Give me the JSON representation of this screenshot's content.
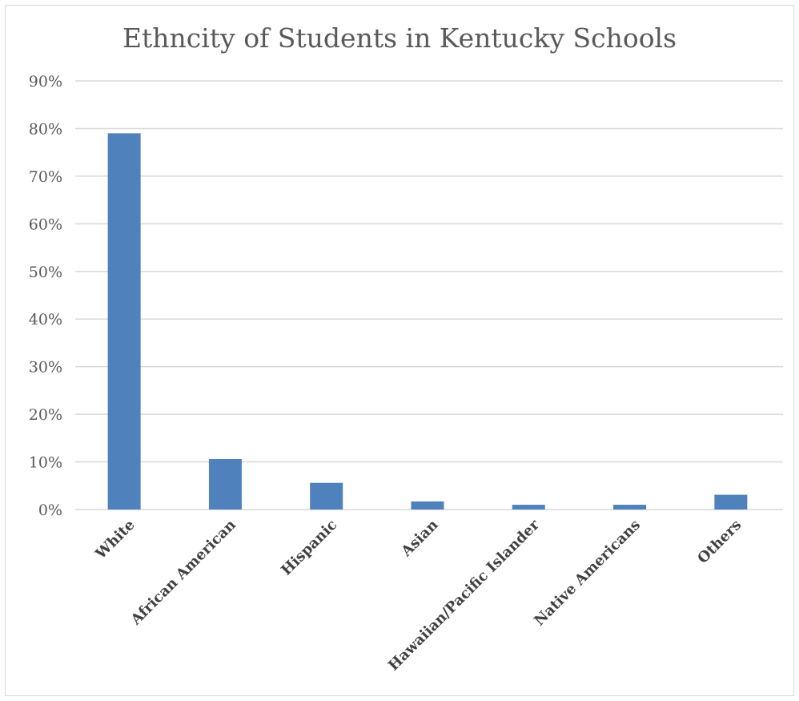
{
  "chart_data": {
    "type": "bar",
    "title": "Ethncity of Students in Kentucky Schools",
    "xlabel": "",
    "ylabel": "",
    "categories": [
      "White",
      "African American",
      "Hispanic",
      "Asian",
      "Hawaiian/Pacific Islander",
      "Native Americans",
      "Others"
    ],
    "series": [
      {
        "values": [
          0.79,
          0.106,
          0.056,
          0.017,
          0.01,
          0.01,
          0.031
        ]
      }
    ],
    "ylim": [
      0,
      0.9
    ],
    "yticks": [
      0,
      0.1,
      0.2,
      0.3,
      0.4,
      0.5,
      0.6,
      0.7,
      0.8,
      0.9
    ],
    "ytick_labels": [
      "0%",
      "10%",
      "20%",
      "30%",
      "40%",
      "50%",
      "60%",
      "70%",
      "80%",
      "90%"
    ],
    "grid": true,
    "legend": "none",
    "colors": {
      "bar": "#4f81bd",
      "grid": "#d9d9d9",
      "text": "#595959"
    }
  }
}
